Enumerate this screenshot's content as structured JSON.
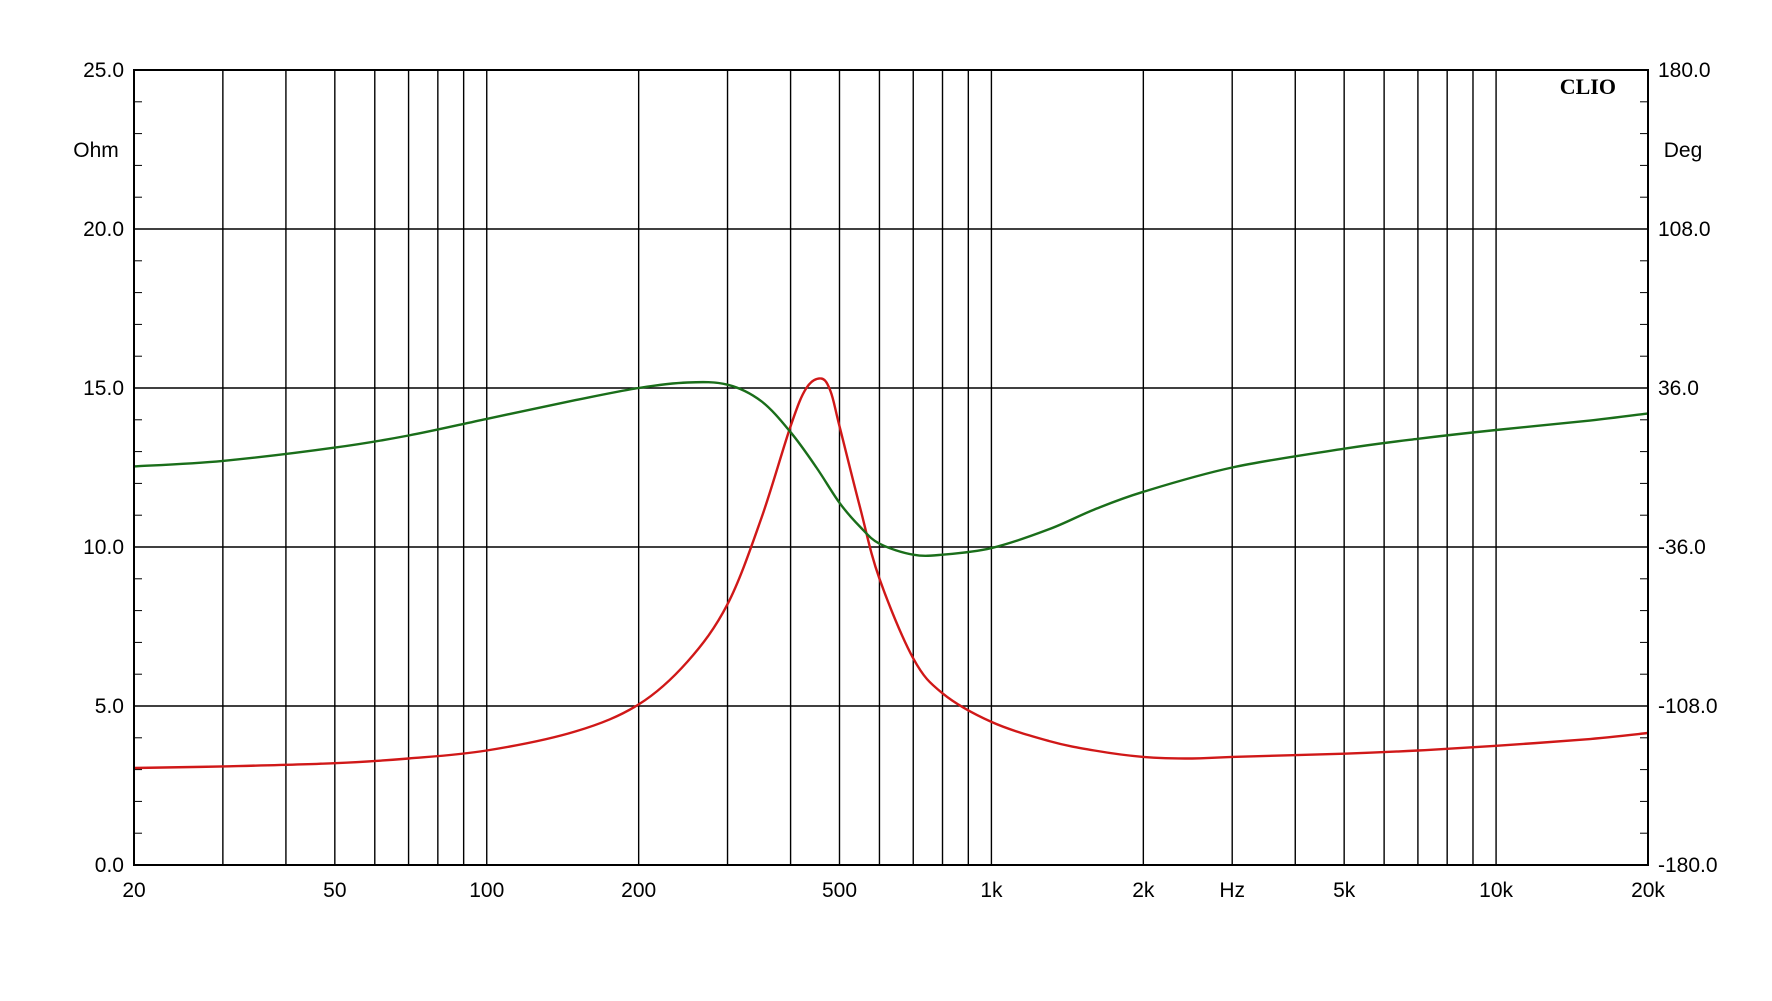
{
  "chart_data": {
    "type": "line",
    "brand": "CLIO",
    "x_axis": {
      "scale": "log",
      "range": [
        20,
        20000
      ],
      "unit_label": "Hz",
      "ticks": [
        {
          "value": 20,
          "label": "20"
        },
        {
          "value": 50,
          "label": "50"
        },
        {
          "value": 100,
          "label": "100"
        },
        {
          "value": 200,
          "label": "200"
        },
        {
          "value": 500,
          "label": "500"
        },
        {
          "value": 1000,
          "label": "1k"
        },
        {
          "value": 2000,
          "label": "2k"
        },
        {
          "value": 5000,
          "label": "5k"
        },
        {
          "value": 10000,
          "label": "10k"
        },
        {
          "value": 20000,
          "label": "20k"
        }
      ]
    },
    "y_left": {
      "label": "Ohm",
      "range": [
        0,
        25
      ],
      "ticks": [
        "0.0",
        "5.0",
        "10.0",
        "15.0",
        "20.0",
        "25.0"
      ]
    },
    "y_right": {
      "label": "Deg",
      "range": [
        -180,
        180
      ],
      "ticks": [
        "-180.0",
        "-108.0",
        "-36.0",
        "36.0",
        "108.0",
        "180.0"
      ]
    },
    "grid": true,
    "series": [
      {
        "color": "#d01818",
        "axis": "left",
        "x": [
          20,
          30,
          50,
          70,
          100,
          150,
          200,
          250,
          300,
          350,
          400,
          430,
          460,
          480,
          500,
          550,
          600,
          700,
          800,
          1000,
          1300,
          1600,
          2000,
          2500,
          3000,
          5000,
          7000,
          10000,
          15000,
          20000
        ],
        "y": [
          3.05,
          3.1,
          3.2,
          3.35,
          3.6,
          4.2,
          5.05,
          6.4,
          8.2,
          10.9,
          13.8,
          15.0,
          15.3,
          14.9,
          13.8,
          11.2,
          9.0,
          6.5,
          5.4,
          4.5,
          3.9,
          3.6,
          3.4,
          3.35,
          3.4,
          3.5,
          3.6,
          3.75,
          3.95,
          4.15
        ]
      },
      {
        "color": "#1a6e1a",
        "axis": "right",
        "x": [
          20,
          30,
          50,
          70,
          100,
          150,
          200,
          250,
          300,
          350,
          400,
          450,
          500,
          550,
          600,
          700,
          800,
          1000,
          1300,
          1600,
          2000,
          3000,
          5000,
          7000,
          10000,
          15000,
          20000
        ],
        "y": [
          0.5,
          3,
          9,
          14.5,
          22,
          30.5,
          36,
          38.5,
          37.5,
          30,
          16,
          0,
          -16,
          -27,
          -34.5,
          -39.5,
          -39.5,
          -36.5,
          -28,
          -19,
          -11,
          0,
          8.5,
          13,
          17,
          21,
          24.5
        ]
      }
    ]
  }
}
